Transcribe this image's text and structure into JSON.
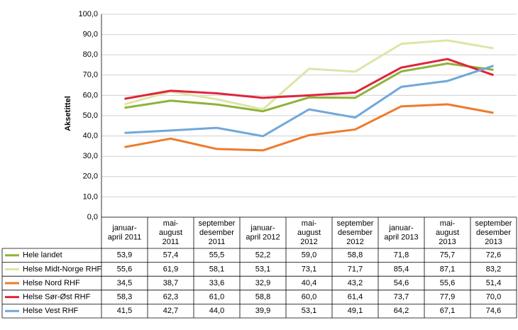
{
  "chart_data": {
    "type": "line",
    "y_label": "Aksetittel",
    "categories": [
      [
        "januar-",
        "april 2011"
      ],
      [
        "mai-",
        "august",
        "2011"
      ],
      [
        "september",
        "desember",
        "2011"
      ],
      [
        "januar-",
        "april 2012"
      ],
      [
        "mai-",
        "august",
        "2012"
      ],
      [
        "september",
        "desember",
        "2012"
      ],
      [
        "januar-",
        "april 2013"
      ],
      [
        "mai-",
        "august",
        "2013"
      ],
      [
        "september",
        "desember",
        "2013"
      ]
    ],
    "series": [
      {
        "name": "Hele landet",
        "color": "#8db33a",
        "values": [
          53.9,
          57.4,
          55.5,
          52.2,
          59.0,
          58.8,
          71.8,
          75.7,
          72.6
        ],
        "value_labels": [
          "53,9",
          "57,4",
          "55,5",
          "52,2",
          "59,0",
          "58,8",
          "71,8",
          "75,7",
          "72,6"
        ]
      },
      {
        "name": "Helse Midt-Norge RHF",
        "color": "#dfe4a8",
        "values": [
          55.6,
          61.9,
          58.1,
          53.1,
          73.1,
          71.7,
          85.4,
          87.1,
          83.2
        ],
        "value_labels": [
          "55,6",
          "61,9",
          "58,1",
          "53,1",
          "73,1",
          "71,7",
          "85,4",
          "87,1",
          "83,2"
        ]
      },
      {
        "name": "Helse Nord RHF",
        "color": "#ef7a2d",
        "values": [
          34.5,
          38.7,
          33.6,
          32.9,
          40.4,
          43.2,
          54.6,
          55.6,
          51.4
        ],
        "value_labels": [
          "34,5",
          "38,7",
          "33,6",
          "32,9",
          "40,4",
          "43,2",
          "54,6",
          "55,6",
          "51,4"
        ]
      },
      {
        "name": "Helse Sør-Øst RHF",
        "color": "#e0243c",
        "values": [
          58.3,
          62.3,
          61.0,
          58.8,
          60.0,
          61.4,
          73.7,
          77.9,
          70.0
        ],
        "value_labels": [
          "58,3",
          "62,3",
          "61,0",
          "58,8",
          "60,0",
          "61,4",
          "73,7",
          "77,9",
          "70,0"
        ]
      },
      {
        "name": "Helse Vest RHF",
        "color": "#72a7d9",
        "values": [
          41.5,
          42.7,
          44.0,
          39.9,
          53.1,
          49.1,
          64.2,
          67.1,
          74.6
        ],
        "value_labels": [
          "41,5",
          "42,7",
          "44,0",
          "39,9",
          "53,1",
          "49,1",
          "64,2",
          "67,1",
          "74,6"
        ]
      }
    ],
    "ylim": [
      0,
      100
    ],
    "yticks": [
      {
        "value": 0,
        "label": "0,0"
      },
      {
        "value": 10,
        "label": "10,0"
      },
      {
        "value": 20,
        "label": "20,0"
      },
      {
        "value": 30,
        "label": "30,0"
      },
      {
        "value": 40,
        "label": "40,0"
      },
      {
        "value": 50,
        "label": "50,0"
      },
      {
        "value": 60,
        "label": "60,0"
      },
      {
        "value": 70,
        "label": "70,0"
      },
      {
        "value": 80,
        "label": "80,0"
      },
      {
        "value": 90,
        "label": "90,0"
      },
      {
        "value": 100,
        "label": "100,0"
      }
    ],
    "grid": true
  }
}
